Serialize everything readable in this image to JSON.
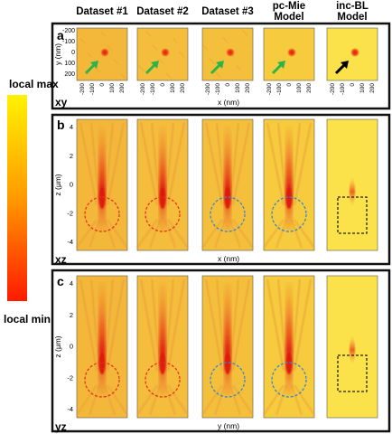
{
  "columns": [
    "Dataset #1",
    "Dataset #2",
    "Dataset #3",
    "pc-Mie\nModel",
    "inc-BL\nModel"
  ],
  "colorbar": {
    "max_label": "local max",
    "min_label": "local min"
  },
  "panels": [
    {
      "letter": "a",
      "plane": "xy",
      "ylabel": "y (nm)",
      "xlabel": "x (nm)",
      "yticks": [
        "-200",
        "-100",
        "0",
        "100",
        "200"
      ],
      "xticks": [
        "-200",
        "-100",
        "0",
        "100",
        "200"
      ]
    },
    {
      "letter": "b",
      "plane": "xz",
      "ylabel": "z (μm)",
      "xlabel": "x (nm)",
      "yticks": [
        "4",
        "2",
        "0",
        "-2",
        "-4"
      ]
    },
    {
      "letter": "c",
      "plane": "yz",
      "ylabel": "z (μm)",
      "xlabel": "y (nm)",
      "yticks": [
        "4",
        "2",
        "0",
        "-2",
        "-4"
      ]
    }
  ],
  "outline_styles": [
    "red-dashed-circle",
    "red-dashed-circle",
    "blue-dashed-circle",
    "blue-dashed-circle",
    "black-dashed-square"
  ],
  "arrow_colors": [
    "#2db34a",
    "#2db34a",
    "#2db34a",
    "#2db34a",
    "#000000"
  ],
  "colors": {
    "red": "#e8331c",
    "blue": "#3a86c8",
    "black": "#222222",
    "bg_yellow": "#f6d23a"
  }
}
